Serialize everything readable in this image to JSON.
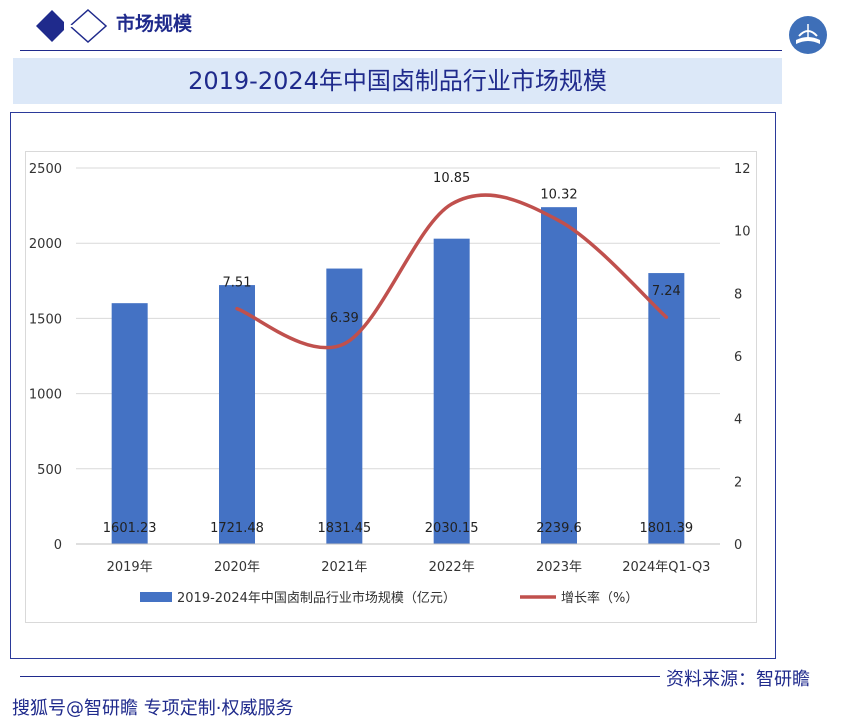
{
  "header": {
    "title": "市场规模"
  },
  "banner": {
    "title": "2019-2024年中国卤制品行业市场规模"
  },
  "source": "资料来源：智研瞻",
  "footer": "搜狐号@智研瞻 专项定制·权威服务",
  "colors": {
    "bar": "#4472c4",
    "line": "#c0504d",
    "brand": "#1f2a8c",
    "banner": "#dce8f8"
  },
  "icons": [
    "diamond-logo-icon",
    "globe-book-icon"
  ],
  "chart_data": {
    "type": "bar",
    "categories": [
      "2019年",
      "2020年",
      "2021年",
      "2022年",
      "2023年",
      "2024年Q1-Q3"
    ],
    "series": [
      {
        "name": "2019-2024年中国卤制品行业市场规模（亿元）",
        "type": "bar",
        "axis": "left",
        "values": [
          1601.23,
          1721.48,
          1831.45,
          2030.15,
          2239.6,
          1801.39
        ],
        "labels": [
          "1601.23",
          "1721.48",
          "1831.45",
          "2030.15",
          "2239.6",
          "1801.39"
        ]
      },
      {
        "name": "增长率（%）",
        "type": "line",
        "axis": "right",
        "values": [
          null,
          7.51,
          6.39,
          10.85,
          10.32,
          7.24
        ],
        "labels": [
          "",
          "7.51",
          "6.39",
          "10.85",
          "10.32",
          "7.24"
        ]
      }
    ],
    "y_left": {
      "ylim": [
        0,
        2500
      ],
      "ticks": [
        "0",
        "500",
        "1000",
        "1500",
        "2000",
        "2500"
      ]
    },
    "y_right": {
      "ylim": [
        0,
        12
      ],
      "ticks": [
        "0",
        "2",
        "4",
        "6",
        "8",
        "10",
        "12"
      ]
    },
    "grid": true,
    "legend": "bottom"
  }
}
